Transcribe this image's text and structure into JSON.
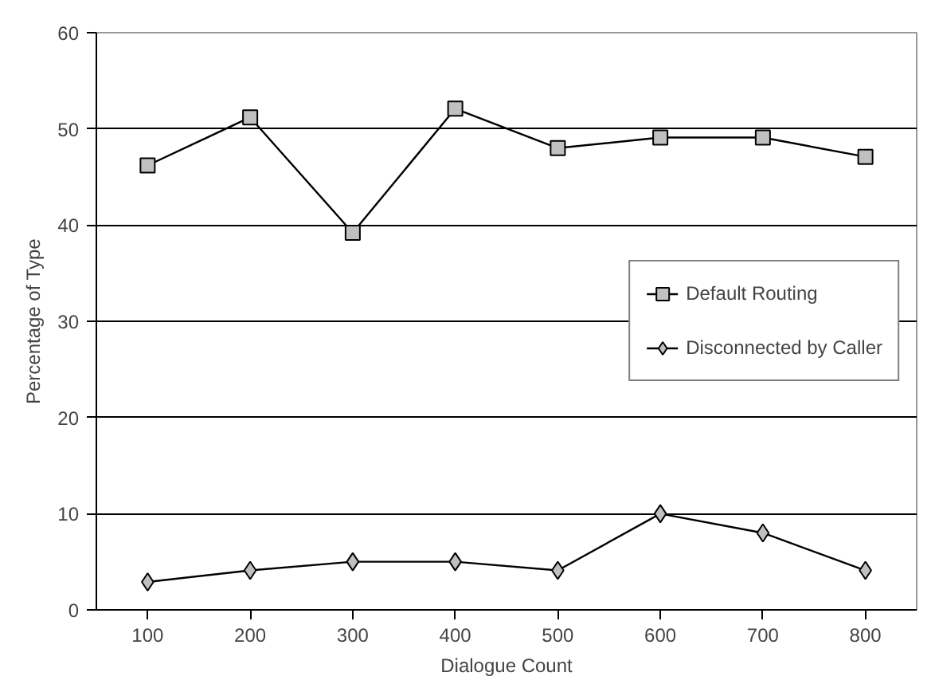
{
  "chart_data": {
    "type": "line",
    "xlabel": "Dialogue Count",
    "ylabel": "Percentage of Type",
    "categories": [
      "100",
      "200",
      "300",
      "400",
      "500",
      "600",
      "700",
      "800"
    ],
    "series": [
      {
        "name": "Default Routing",
        "color": "#000000",
        "marker": "square",
        "values": [
          46.2,
          51.2,
          39.2,
          52.1,
          48,
          49.1,
          49.1,
          47.1
        ]
      },
      {
        "name": "Disconnected by Caller",
        "color": "#000000",
        "marker": "diamond",
        "values": [
          2.9,
          4.1,
          5,
          5,
          4.1,
          10,
          8,
          4.1
        ]
      }
    ],
    "ylim": [
      0,
      60
    ],
    "yticks": [
      0,
      10,
      20,
      30,
      40,
      50,
      60
    ],
    "grid": "y",
    "legend": "right",
    "line_style": "solid"
  }
}
